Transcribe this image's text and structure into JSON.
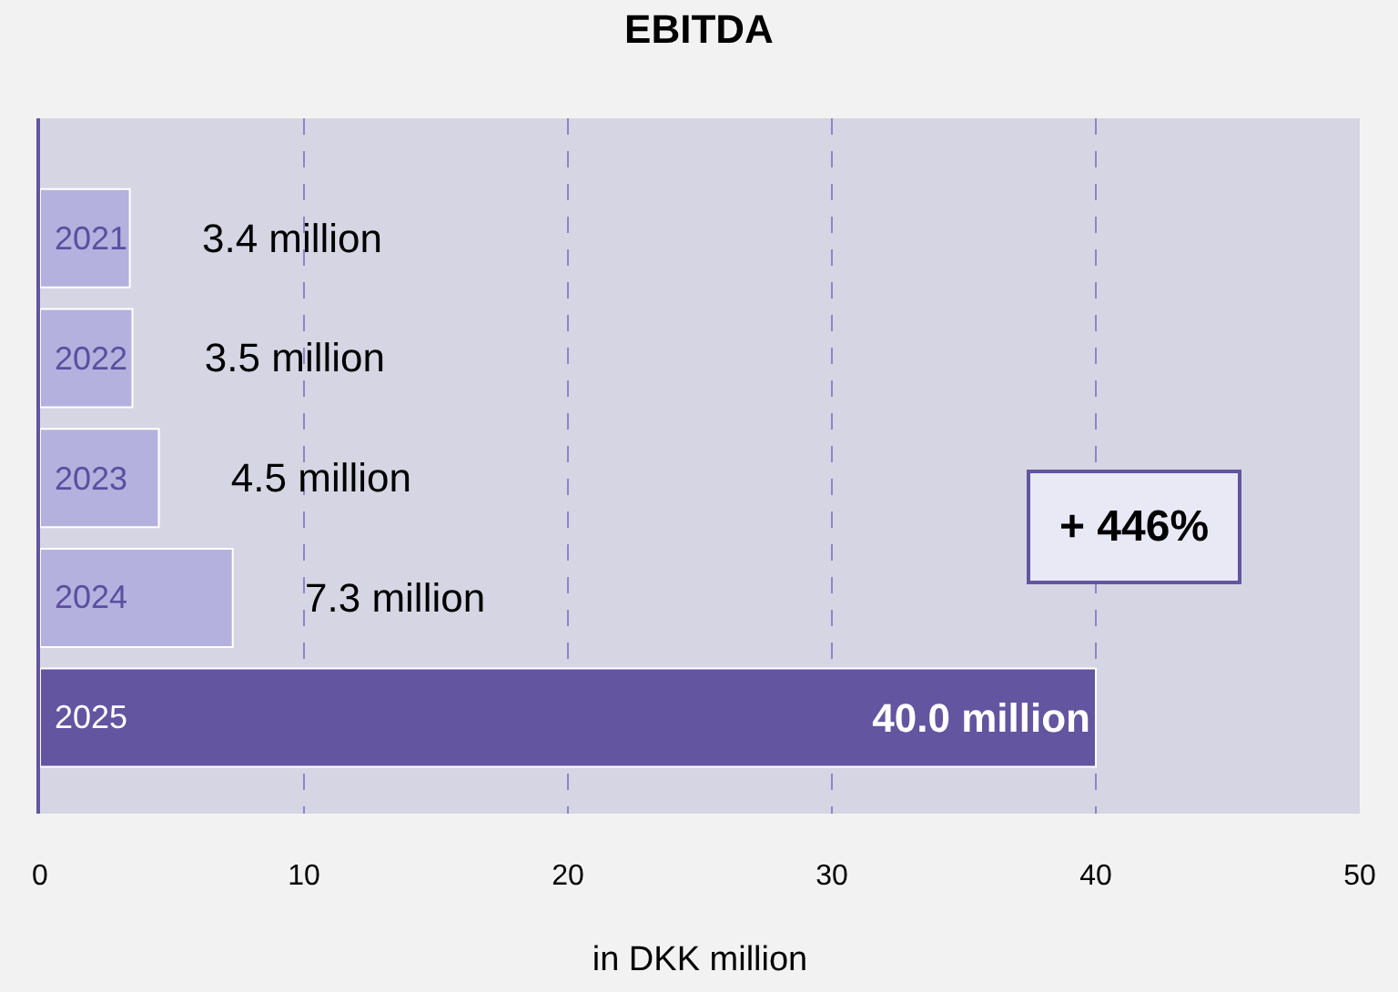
{
  "chart_data": {
    "type": "bar",
    "orientation": "horizontal",
    "title": "EBITDA",
    "xlabel": "in DKK million",
    "categories": [
      "2021",
      "2022",
      "2023",
      "2024",
      "2025"
    ],
    "values": [
      3.4,
      3.5,
      4.5,
      7.3,
      40.0
    ],
    "colors": [
      "#b4b1de",
      "#b4b1de",
      "#b4b1de",
      "#b4b1de",
      "#6355a0"
    ],
    "value_labels": [
      "3.4 million",
      "3.5 million",
      "4.5 million",
      "7.3 million",
      "40.0 million"
    ],
    "xlim": [
      0,
      50
    ],
    "xticks": [
      0,
      10,
      20,
      30,
      40,
      50
    ],
    "grid": "x",
    "annotations": [
      "+ 446%"
    ]
  }
}
